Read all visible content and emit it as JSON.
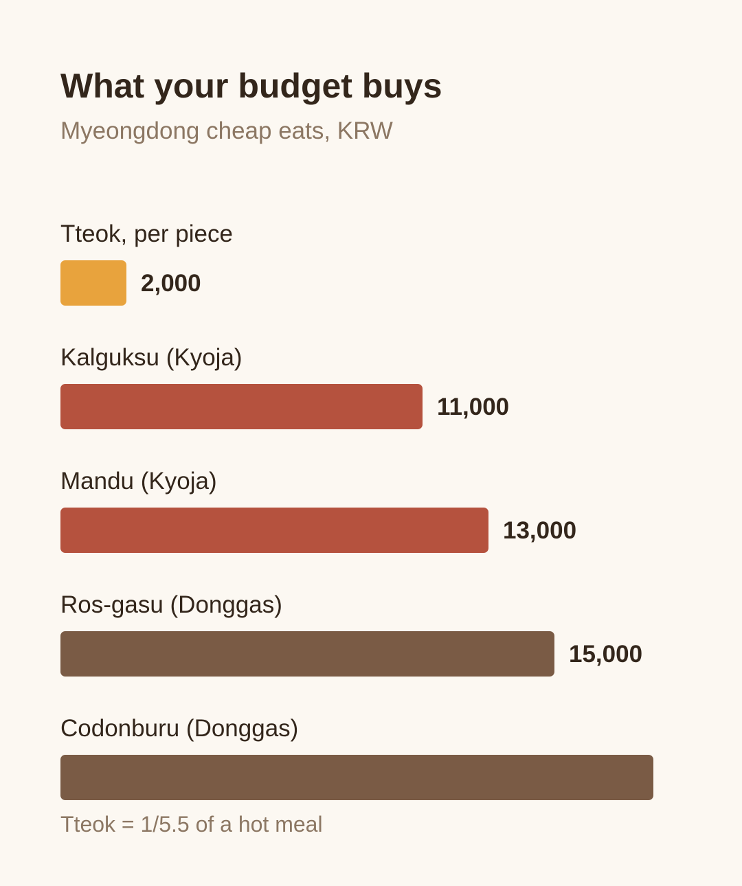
{
  "chart_data": {
    "type": "bar",
    "orientation": "horizontal",
    "title": "What your budget buys",
    "subtitle": "Myeongdong cheap eats, KRW",
    "categories": [
      "Tteok, per piece",
      "Kalguksu (Kyoja)",
      "Mandu (Kyoja)",
      "Ros-gasu (Donggas)",
      "Codonburu (Donggas)"
    ],
    "values": [
      2000,
      11000,
      13000,
      15000,
      18000
    ],
    "value_labels": [
      "2,000",
      "11,000",
      "13,000",
      "15,000",
      ""
    ],
    "bar_colors": [
      "#e8a33d",
      "#b5523e",
      "#b5523e",
      "#7a5b45",
      "#7a5b45"
    ],
    "xlim": [
      0,
      18000
    ],
    "grid": false,
    "legend": "none",
    "annotation": "Tteok = 1/5.5 of a hot meal"
  },
  "colors": {
    "background": "#fcf8f2",
    "text": "#33261b",
    "muted_text": "#8c7763"
  }
}
